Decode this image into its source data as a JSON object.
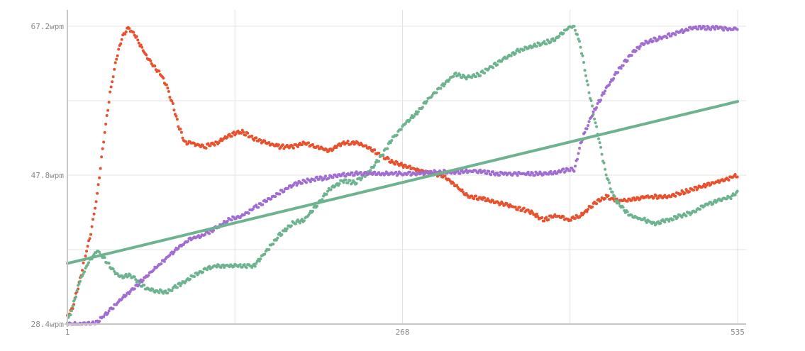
{
  "chart_data": {
    "type": "scatter",
    "title": "",
    "xlabel": "",
    "ylabel": "",
    "xlim": [
      1,
      535
    ],
    "ylim": [
      28.4,
      67.2
    ],
    "x_ticks": [
      {
        "value": 1,
        "label": "1"
      },
      {
        "value": 268,
        "label": "268"
      },
      {
        "value": 535,
        "label": "535"
      }
    ],
    "y_ticks": [
      {
        "value": 28.4,
        "label": "28.4wpm"
      },
      {
        "value": 47.8,
        "label": "47.8wpm"
      },
      {
        "value": 67.2,
        "label": "67.2wpm"
      }
    ],
    "x_gridlines": [
      1,
      134.5,
      268,
      401.5,
      535
    ],
    "y_gridlines": [
      28.4,
      38.1,
      47.8,
      57.5,
      67.2
    ],
    "grid": true,
    "legend": "none",
    "series": [
      {
        "color": "#e8512d",
        "marker": "dots",
        "points": [
          [
            1,
            29.3
          ],
          [
            5,
            30.5
          ],
          [
            10,
            33.5
          ],
          [
            15,
            37.0
          ],
          [
            20,
            40.5
          ],
          [
            25,
            45.5
          ],
          [
            30,
            52.5
          ],
          [
            35,
            58.5
          ],
          [
            40,
            63.0
          ],
          [
            45,
            66.0
          ],
          [
            50,
            67.0
          ],
          [
            55,
            66.0
          ],
          [
            60,
            64.5
          ],
          [
            65,
            63.0
          ],
          [
            70,
            62.0
          ],
          [
            75,
            61.0
          ],
          [
            80,
            59.5
          ],
          [
            85,
            57.0
          ],
          [
            90,
            54.0
          ],
          [
            95,
            52.0
          ],
          [
            100,
            52.0
          ],
          [
            110,
            51.5
          ],
          [
            120,
            52.0
          ],
          [
            130,
            53.0
          ],
          [
            140,
            53.5
          ],
          [
            150,
            52.5
          ],
          [
            160,
            52.0
          ],
          [
            170,
            51.5
          ],
          [
            180,
            51.5
          ],
          [
            190,
            52.0
          ],
          [
            200,
            51.5
          ],
          [
            210,
            51.0
          ],
          [
            220,
            52.0
          ],
          [
            230,
            52.0
          ],
          [
            240,
            51.5
          ],
          [
            250,
            50.5
          ],
          [
            260,
            49.5
          ],
          [
            270,
            49.0
          ],
          [
            280,
            48.5
          ],
          [
            290,
            48.0
          ],
          [
            300,
            47.8
          ],
          [
            310,
            46.5
          ],
          [
            320,
            45.0
          ],
          [
            330,
            44.8
          ],
          [
            340,
            44.3
          ],
          [
            350,
            44.0
          ],
          [
            360,
            43.5
          ],
          [
            370,
            43.0
          ],
          [
            380,
            42.0
          ],
          [
            390,
            42.5
          ],
          [
            400,
            42.0
          ],
          [
            410,
            42.5
          ],
          [
            420,
            44.0
          ],
          [
            430,
            45.0
          ],
          [
            440,
            44.5
          ],
          [
            450,
            44.5
          ],
          [
            460,
            45.0
          ],
          [
            470,
            45.0
          ],
          [
            480,
            45.0
          ],
          [
            490,
            45.5
          ],
          [
            500,
            46.0
          ],
          [
            510,
            46.5
          ],
          [
            520,
            47.0
          ],
          [
            530,
            47.5
          ],
          [
            535,
            47.8
          ]
        ]
      },
      {
        "color": "#6db38f",
        "marker": "dots",
        "points": [
          [
            1,
            28.6
          ],
          [
            5,
            30.5
          ],
          [
            10,
            33.5
          ],
          [
            15,
            35.5
          ],
          [
            20,
            37.0
          ],
          [
            25,
            38.0
          ],
          [
            30,
            37.0
          ],
          [
            35,
            36.0
          ],
          [
            40,
            35.0
          ],
          [
            45,
            34.5
          ],
          [
            50,
            34.8
          ],
          [
            55,
            34.3
          ],
          [
            60,
            33.5
          ],
          [
            65,
            33.0
          ],
          [
            70,
            32.8
          ],
          [
            80,
            32.5
          ],
          [
            90,
            33.5
          ],
          [
            100,
            34.5
          ],
          [
            110,
            35.5
          ],
          [
            120,
            36.0
          ],
          [
            130,
            36.0
          ],
          [
            140,
            36.0
          ],
          [
            150,
            36.0
          ],
          [
            160,
            38.0
          ],
          [
            170,
            40.0
          ],
          [
            180,
            41.5
          ],
          [
            190,
            42.0
          ],
          [
            200,
            44.0
          ],
          [
            210,
            46.0
          ],
          [
            220,
            47.0
          ],
          [
            230,
            46.8
          ],
          [
            240,
            48.0
          ],
          [
            250,
            50.0
          ],
          [
            260,
            52.5
          ],
          [
            270,
            54.5
          ],
          [
            280,
            56.0
          ],
          [
            290,
            58.0
          ],
          [
            300,
            59.5
          ],
          [
            310,
            61.0
          ],
          [
            320,
            60.5
          ],
          [
            330,
            61.0
          ],
          [
            340,
            62.0
          ],
          [
            350,
            63.0
          ],
          [
            360,
            64.0
          ],
          [
            370,
            64.5
          ],
          [
            380,
            65.0
          ],
          [
            390,
            65.5
          ],
          [
            400,
            67.0
          ],
          [
            405,
            67.2
          ],
          [
            410,
            64.5
          ],
          [
            415,
            60.0
          ],
          [
            420,
            56.0
          ],
          [
            425,
            52.0
          ],
          [
            430,
            48.0
          ],
          [
            435,
            45.5
          ],
          [
            440,
            44.0
          ],
          [
            450,
            42.5
          ],
          [
            460,
            42.0
          ],
          [
            470,
            41.5
          ],
          [
            480,
            42.0
          ],
          [
            490,
            42.5
          ],
          [
            500,
            43.0
          ],
          [
            510,
            44.0
          ],
          [
            520,
            44.5
          ],
          [
            530,
            45.0
          ],
          [
            535,
            45.5
          ]
        ]
      },
      {
        "color": "#a06dd1",
        "marker": "dots",
        "points": [
          [
            1,
            28.4
          ],
          [
            20,
            28.4
          ],
          [
            25,
            28.6
          ],
          [
            30,
            29.5
          ],
          [
            40,
            31.0
          ],
          [
            50,
            32.5
          ],
          [
            60,
            34.0
          ],
          [
            70,
            35.5
          ],
          [
            80,
            37.0
          ],
          [
            90,
            38.5
          ],
          [
            100,
            39.5
          ],
          [
            110,
            40.0
          ],
          [
            120,
            41.0
          ],
          [
            130,
            42.0
          ],
          [
            140,
            42.5
          ],
          [
            150,
            43.5
          ],
          [
            160,
            44.5
          ],
          [
            170,
            45.5
          ],
          [
            180,
            46.5
          ],
          [
            190,
            47.0
          ],
          [
            200,
            47.3
          ],
          [
            210,
            47.5
          ],
          [
            220,
            47.8
          ],
          [
            230,
            48.0
          ],
          [
            240,
            48.0
          ],
          [
            250,
            48.0
          ],
          [
            260,
            48.0
          ],
          [
            270,
            48.0
          ],
          [
            280,
            48.0
          ],
          [
            290,
            48.2
          ],
          [
            300,
            48.2
          ],
          [
            310,
            48.2
          ],
          [
            320,
            48.3
          ],
          [
            330,
            48.3
          ],
          [
            340,
            48.0
          ],
          [
            350,
            48.0
          ],
          [
            360,
            48.0
          ],
          [
            370,
            48.0
          ],
          [
            380,
            48.0
          ],
          [
            390,
            48.2
          ],
          [
            400,
            48.5
          ],
          [
            405,
            48.5
          ],
          [
            410,
            52.0
          ],
          [
            420,
            56.0
          ],
          [
            430,
            59.0
          ],
          [
            440,
            61.5
          ],
          [
            450,
            63.5
          ],
          [
            460,
            65.0
          ],
          [
            470,
            65.5
          ],
          [
            480,
            66.0
          ],
          [
            490,
            66.5
          ],
          [
            500,
            67.0
          ],
          [
            510,
            67.0
          ],
          [
            520,
            67.0
          ],
          [
            530,
            66.8
          ],
          [
            535,
            67.0
          ]
        ]
      },
      {
        "color": "#6db38f",
        "marker": "line",
        "points": [
          [
            1,
            36.3
          ],
          [
            535,
            57.4
          ]
        ]
      }
    ]
  }
}
